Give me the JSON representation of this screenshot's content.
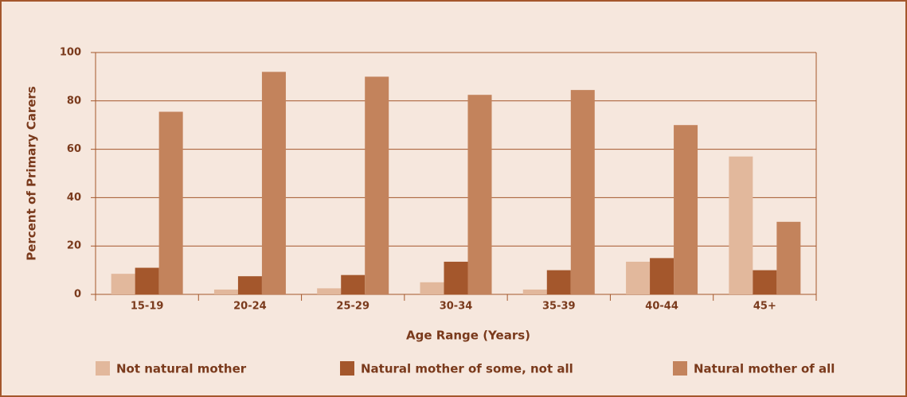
{
  "chart_data": {
    "type": "bar",
    "categories": [
      "15-19",
      "20-24",
      "25-29",
      "30-34",
      "35-39",
      "40-44",
      "45+"
    ],
    "series": [
      {
        "name": "Not natural mother",
        "color": "#e2b89c",
        "values": [
          8.5,
          2,
          2.5,
          5,
          2,
          13.5,
          57
        ]
      },
      {
        "name": "Natural mother of some, not all",
        "color": "#a4572c",
        "values": [
          11,
          7.5,
          8,
          13.5,
          10,
          15,
          10
        ]
      },
      {
        "name": "Natural mother of all",
        "color": "#c3835c",
        "values": [
          75.5,
          92,
          90,
          82.5,
          84.5,
          70,
          30
        ]
      }
    ],
    "x_label": "Age Range (Years)",
    "y_label": "Percent of Primary Carers",
    "ylim": [
      0,
      100
    ],
    "yticks": [
      0,
      20,
      40,
      60,
      80,
      100
    ],
    "grid": true,
    "legend": "bottom"
  }
}
